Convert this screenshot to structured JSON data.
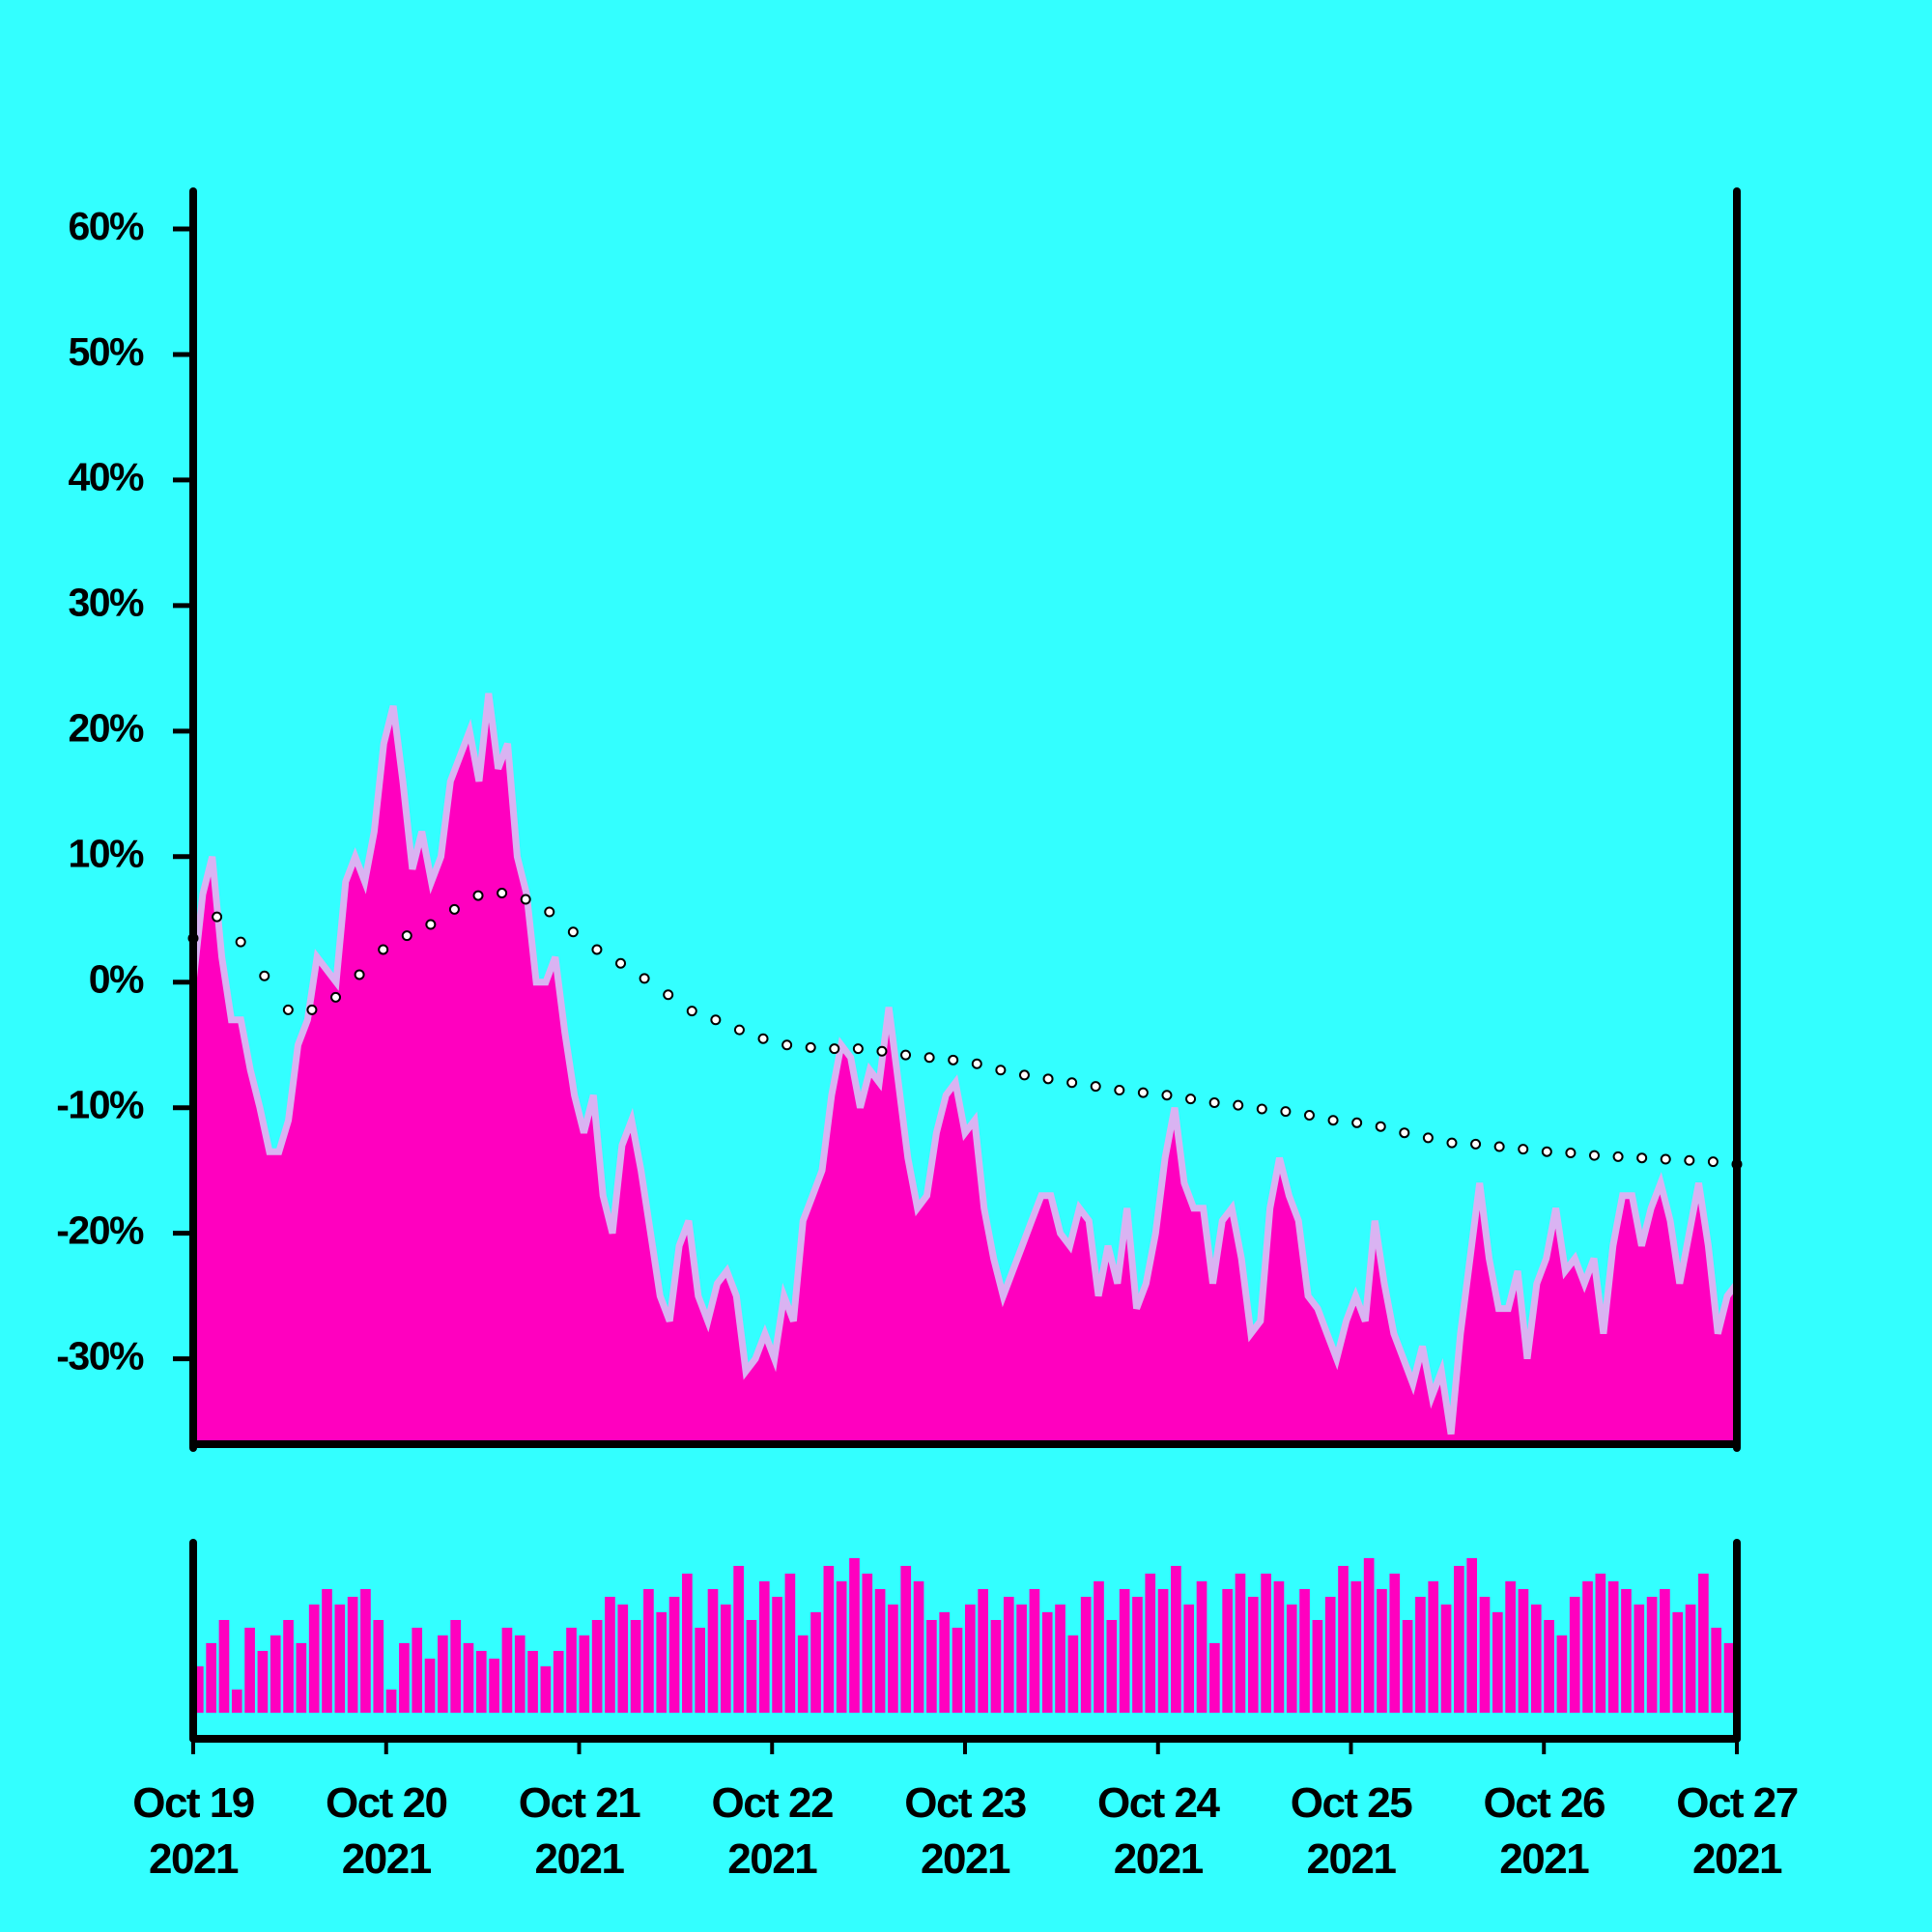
{
  "chart_data": [
    {
      "type": "area",
      "ylim": [
        -36.8,
        63
      ],
      "yticks": [
        {
          "value": -30,
          "label": "-30%"
        },
        {
          "value": -20,
          "label": "-20%"
        },
        {
          "value": -10,
          "label": "-10%"
        },
        {
          "value": 0,
          "label": "0%"
        },
        {
          "value": 10,
          "label": "10%"
        },
        {
          "value": 20,
          "label": "20%"
        },
        {
          "value": 30,
          "label": "30%"
        },
        {
          "value": 40,
          "label": "40%"
        },
        {
          "value": 50,
          "label": "50%"
        },
        {
          "value": 60,
          "label": "60%"
        }
      ],
      "xlim": [
        "2021-10-19",
        "2021-10-27"
      ],
      "series": [
        {
          "type": "area",
          "color": "#ff00bf",
          "edge_color": "#d9b3f2",
          "values": [
            0,
            7,
            10,
            2,
            -3,
            -3,
            -7,
            -10,
            -13.5,
            -13.5,
            -11,
            -5,
            -3,
            2,
            1,
            0,
            8,
            10,
            8,
            12,
            19,
            22,
            16,
            9,
            12,
            8,
            10,
            16,
            18,
            20,
            16,
            23,
            17,
            19,
            10,
            7,
            0,
            0,
            2,
            -4,
            -9,
            -12,
            -9,
            -17,
            -20,
            -13,
            -11,
            -15,
            -20,
            -25,
            -27,
            -21,
            -19,
            -25,
            -27,
            -24,
            -23,
            -25,
            -31,
            -30,
            -28,
            -30,
            -25,
            -27,
            -19,
            -17,
            -15,
            -9,
            -5,
            -6,
            -10,
            -7,
            -8,
            -2,
            -8,
            -14,
            -18,
            -17,
            -12,
            -9,
            -8,
            -12,
            -11,
            -18,
            -22,
            -25,
            -23,
            -21,
            -19,
            -17,
            -17,
            -20,
            -21,
            -18,
            -19,
            -25,
            -21,
            -24,
            -18,
            -26,
            -24,
            -20,
            -14,
            -10,
            -16,
            -18,
            -18,
            -24,
            -19,
            -18,
            -22,
            -28,
            -27,
            -18,
            -14,
            -17,
            -19,
            -25,
            -26,
            -28,
            -30,
            -27,
            -25,
            -27,
            -19,
            -24,
            -28,
            -30,
            -32,
            -29,
            -33,
            -31,
            -36,
            -28,
            -22,
            -16,
            -22,
            -26,
            -26,
            -23,
            -30,
            -24,
            -22,
            -18,
            -23,
            -22,
            -24,
            -22,
            -28,
            -21,
            -17,
            -17,
            -21,
            -18,
            -16,
            -19,
            -24,
            -20,
            -16,
            -21,
            -28,
            -25,
            -24
          ]
        },
        {
          "type": "dots",
          "color": "#000000",
          "values": [
            3.5,
            5.2,
            3.2,
            0.5,
            -2.2,
            -2.2,
            -1.2,
            0.6,
            2.6,
            3.7,
            4.6,
            5.8,
            6.9,
            7.1,
            6.6,
            5.6,
            4.0,
            2.6,
            1.5,
            0.3,
            -1.0,
            -2.3,
            -3.0,
            -3.8,
            -4.5,
            -5.0,
            -5.2,
            -5.3,
            -5.3,
            -5.5,
            -5.8,
            -6.0,
            -6.2,
            -6.5,
            -7.0,
            -7.4,
            -7.7,
            -8.0,
            -8.3,
            -8.6,
            -8.8,
            -9.0,
            -9.3,
            -9.6,
            -9.8,
            -10.1,
            -10.3,
            -10.6,
            -11.0,
            -11.2,
            -11.5,
            -12.0,
            -12.4,
            -12.8,
            -12.9,
            -13.1,
            -13.3,
            -13.5,
            -13.6,
            -13.8,
            -13.9,
            -14.0,
            -14.1,
            -14.2,
            -14.3,
            -14.5
          ]
        }
      ]
    },
    {
      "type": "bar",
      "color": "#ff00bf",
      "xlim": [
        "2021-10-19",
        "2021-10-27"
      ],
      "xticks": [
        {
          "value": "2021-10-19",
          "label": "Oct 19 2021"
        },
        {
          "value": "2021-10-20",
          "label": "Oct 20 2021"
        },
        {
          "value": "2021-10-21",
          "label": "Oct 21 2021"
        },
        {
          "value": "2021-10-22",
          "label": "Oct 22 2021"
        },
        {
          "value": "2021-10-23",
          "label": "Oct 23 2021"
        },
        {
          "value": "2021-10-24",
          "label": "Oct 24 2021"
        },
        {
          "value": "2021-10-25",
          "label": "Oct 25 2021"
        },
        {
          "value": "2021-10-26",
          "label": "Oct 26 2021"
        },
        {
          "value": "2021-10-27",
          "label": "Oct 27 2021"
        }
      ],
      "values": [
        30,
        45,
        60,
        15,
        55,
        40,
        50,
        60,
        45,
        70,
        80,
        70,
        75,
        80,
        60,
        15,
        45,
        55,
        35,
        50,
        60,
        45,
        40,
        35,
        55,
        50,
        40,
        30,
        40,
        55,
        50,
        60,
        75,
        70,
        60,
        80,
        65,
        75,
        90,
        55,
        80,
        70,
        95,
        60,
        85,
        75,
        90,
        50,
        65,
        95,
        85,
        100,
        90,
        80,
        70,
        95,
        85,
        60,
        65,
        55,
        70,
        80,
        60,
        75,
        70,
        80,
        65,
        70,
        50,
        75,
        85,
        60,
        80,
        75,
        90,
        80,
        95,
        70,
        85,
        45,
        80,
        90,
        75,
        90,
        85,
        70,
        80,
        60,
        75,
        95,
        85,
        100,
        80,
        90,
        60,
        75,
        85,
        70,
        95,
        100,
        75,
        65,
        85,
        80,
        70,
        60,
        50,
        75,
        85,
        90,
        85,
        80,
        70,
        75,
        80,
        65,
        70,
        90,
        55,
        45
      ]
    }
  ]
}
